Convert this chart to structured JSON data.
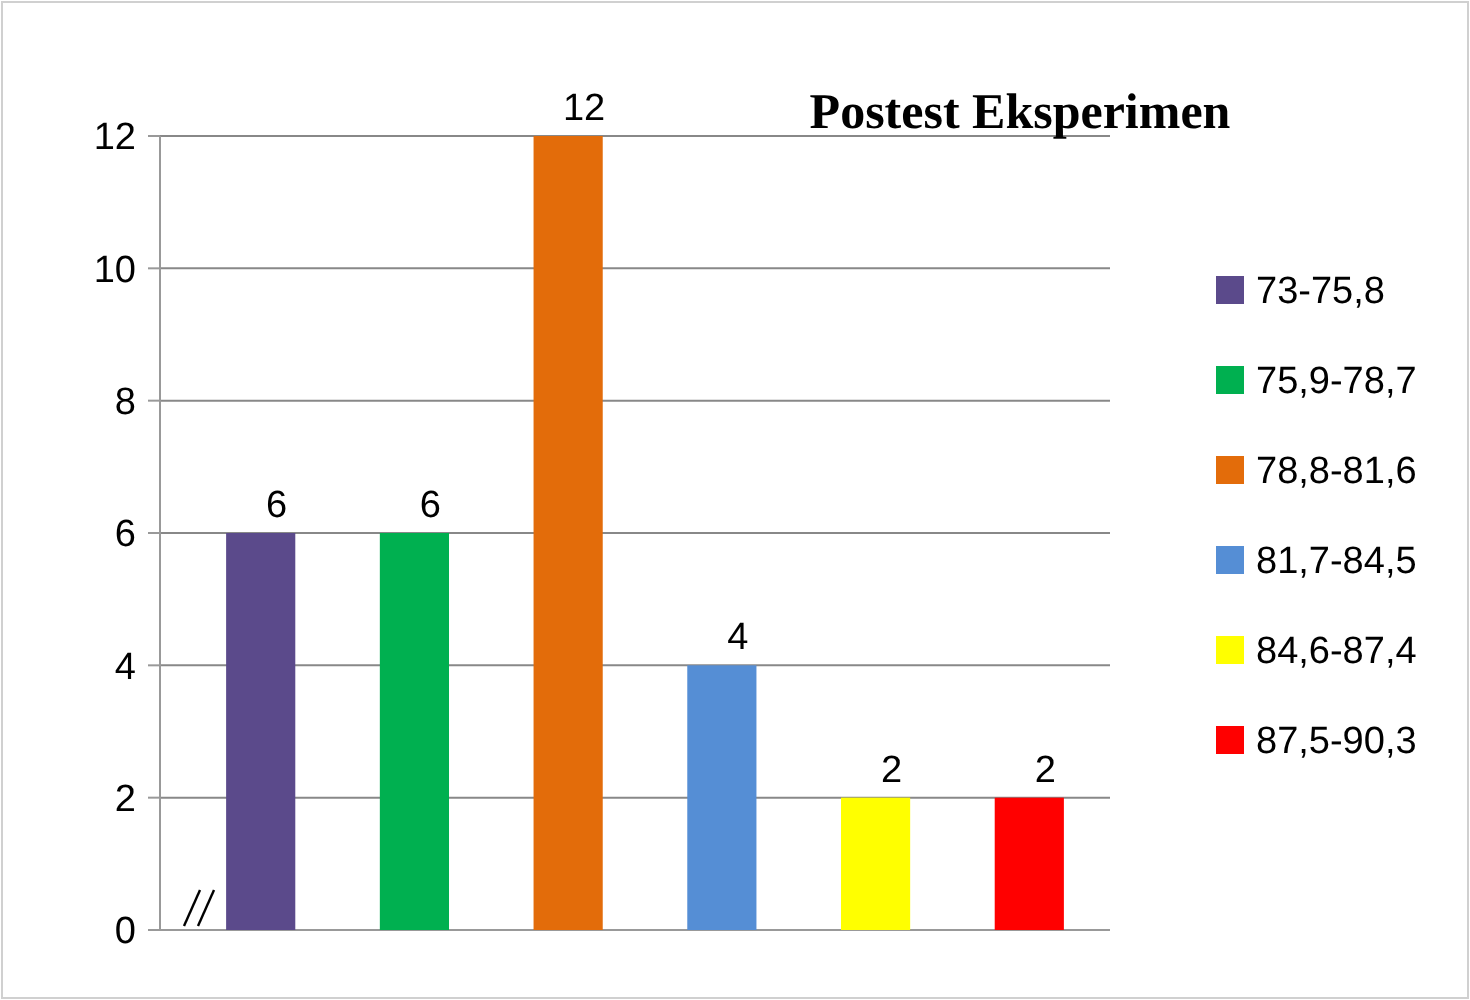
{
  "chart_data": {
    "type": "bar",
    "title": "Postest Eksperimen",
    "categories": [
      null,
      null,
      null,
      null,
      null,
      null
    ],
    "series": [
      {
        "name": "73-75,8",
        "color": "#5b4a8b",
        "values": [
          6,
          null,
          null,
          null,
          null,
          null
        ]
      },
      {
        "name": "75,9-78,7",
        "color": "#00b050",
        "values": [
          null,
          6,
          null,
          null,
          null,
          null
        ]
      },
      {
        "name": "78,8-81,6",
        "color": "#e36c0a",
        "values": [
          null,
          null,
          12,
          null,
          null,
          null
        ]
      },
      {
        "name": "81,7-84,5",
        "color": "#558ed5",
        "values": [
          null,
          null,
          null,
          4,
          null,
          null
        ]
      },
      {
        "name": "84,6-87,4",
        "color": "#ffff00",
        "values": [
          null,
          null,
          null,
          null,
          2,
          null
        ]
      },
      {
        "name": "87,5-90,3",
        "color": "#ff0000",
        "values": [
          null,
          null,
          null,
          null,
          null,
          2
        ]
      }
    ],
    "ylim": [
      0,
      12
    ],
    "yticks": [
      0,
      2,
      4,
      6,
      8,
      10,
      12
    ],
    "grid": "y",
    "legend": "right",
    "tick_labels": "y",
    "data_labels": true
  }
}
